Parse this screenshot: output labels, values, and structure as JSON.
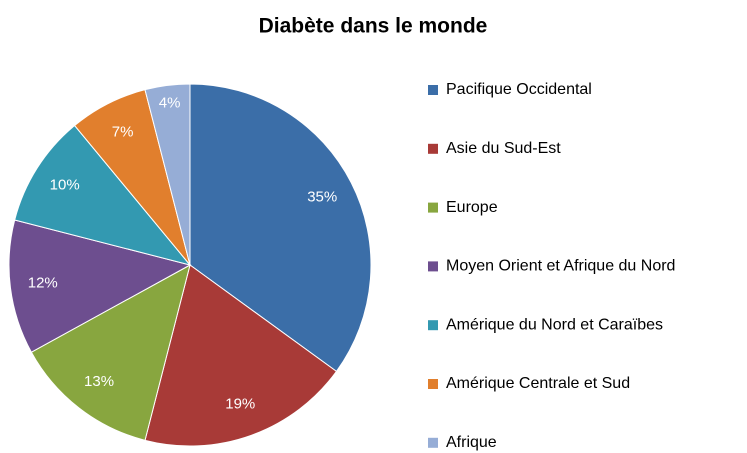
{
  "chart_data": {
    "type": "pie",
    "title": "Diabète dans le monde",
    "categories": [
      "Pacifique Occidental",
      "Asie du Sud-Est",
      "Europe",
      "Moyen Orient et Afrique du Nord",
      "Amérique du Nord et Caraïbes",
      "Amérique Centrale et Sud",
      "Afrique"
    ],
    "values": [
      35,
      19,
      13,
      12,
      10,
      7,
      4
    ],
    "value_labels": [
      "35%",
      "19%",
      "13%",
      "12%",
      "10%",
      "7%",
      "4%"
    ],
    "colors": [
      "#3b6ea8",
      "#a83a37",
      "#88a63f",
      "#6d4e8f",
      "#3399b1",
      "#e17f2d",
      "#96add6"
    ],
    "legend": "right"
  }
}
